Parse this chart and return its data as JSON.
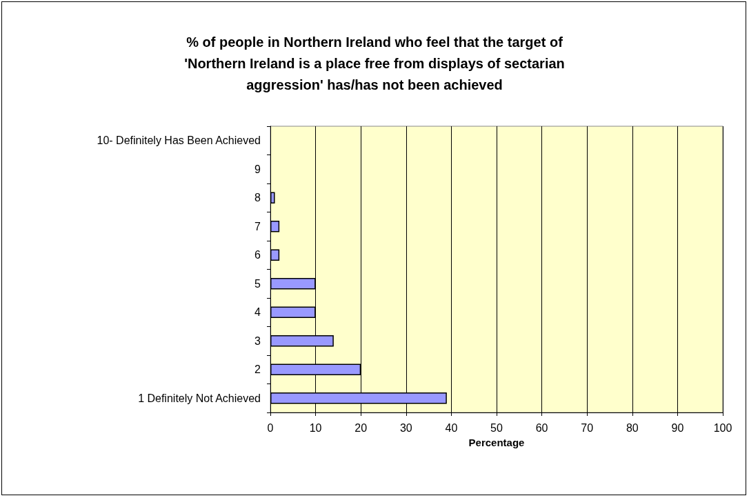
{
  "chart_data": {
    "type": "bar",
    "orientation": "horizontal",
    "title": "% of people in Northern Ireland who feel that the target of\n'Northern Ireland is a place free from displays of sectarian\naggression' has/has not been achieved",
    "xlabel": "Percentage",
    "categories": [
      "10- Definitely Has Been Achieved",
      "9",
      "8",
      "7",
      "6",
      "5",
      "4",
      "3",
      "2",
      "1 Definitely Not Achieved"
    ],
    "values": [
      0,
      0,
      1,
      2,
      2,
      10,
      10,
      14,
      20,
      39
    ],
    "color": "#9999ff",
    "xlim": [
      0,
      100
    ],
    "xticks": [
      0,
      10,
      20,
      30,
      40,
      50,
      60,
      70,
      80,
      90,
      100
    ],
    "grid": "x"
  }
}
